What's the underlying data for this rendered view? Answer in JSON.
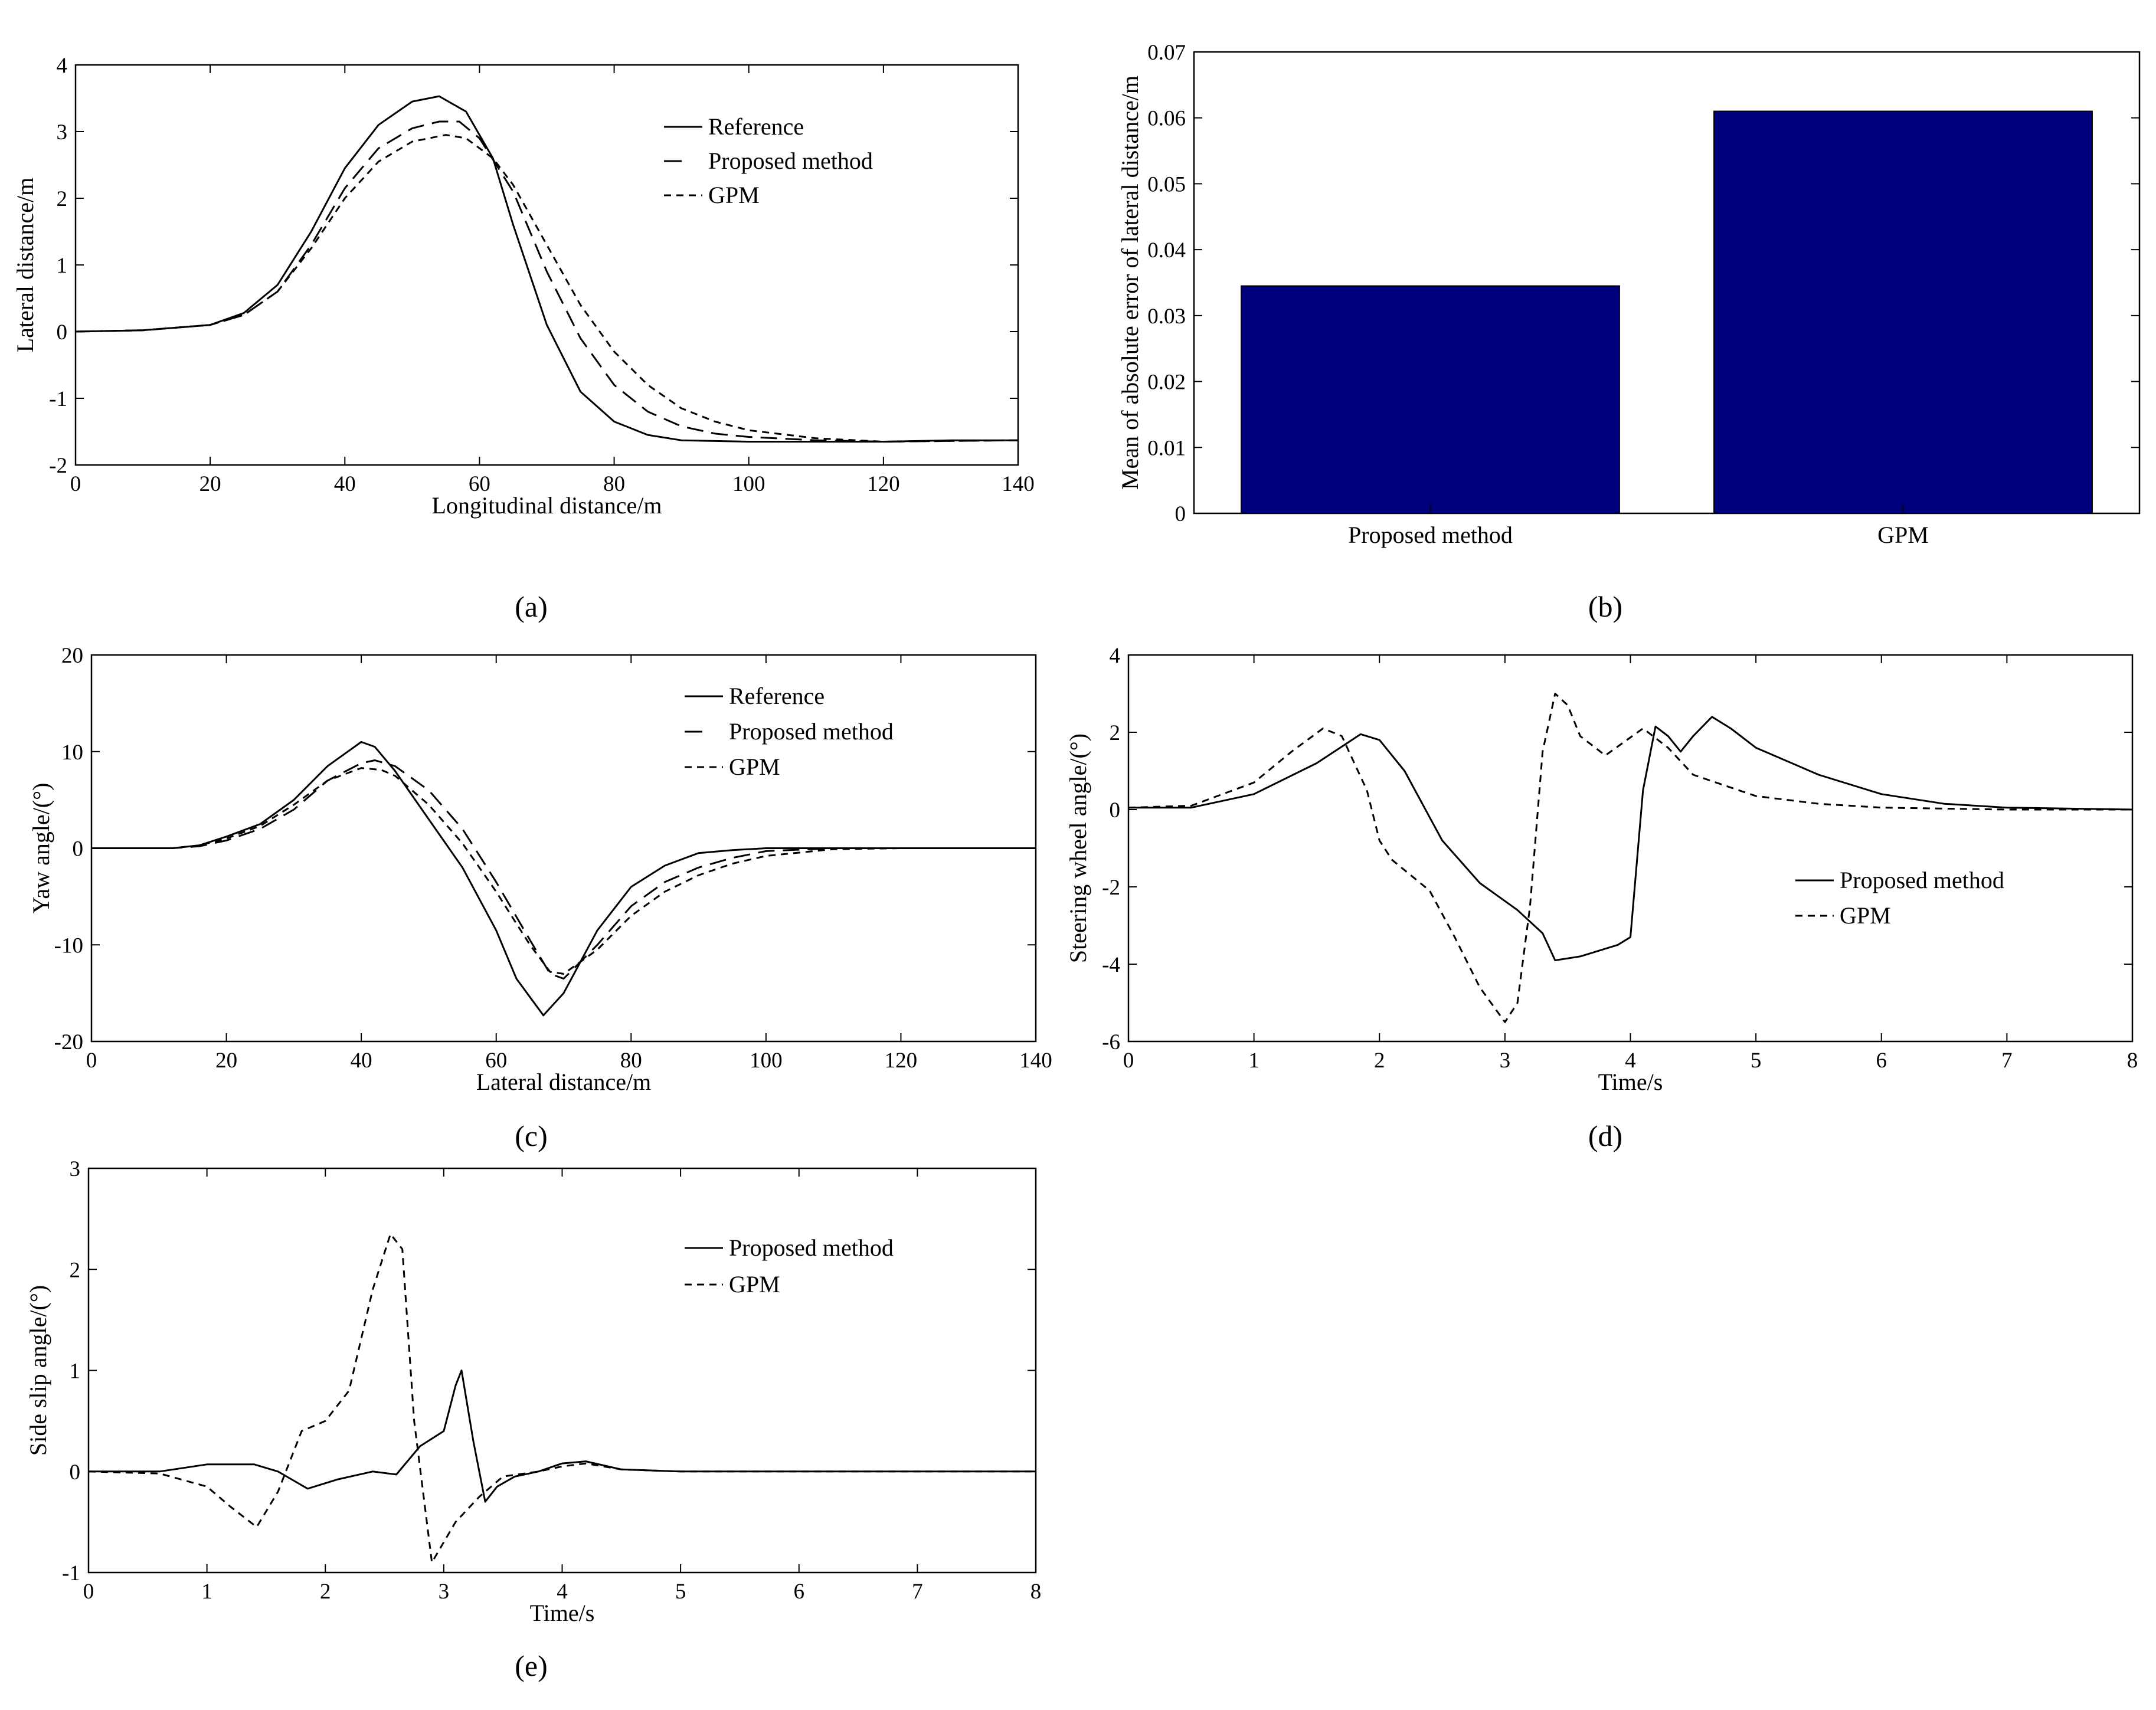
{
  "chart_data": [
    {
      "panel_label": "(a)",
      "type": "line",
      "xlabel": "Longitudinal distance/m",
      "ylabel": "Lateral distance/m",
      "xlim": [
        0,
        140
      ],
      "ylim": [
        -2,
        4
      ],
      "xticks": [
        0,
        20,
        40,
        60,
        80,
        100,
        120,
        140
      ],
      "yticks": [
        -2,
        -1,
        0,
        1,
        2,
        3,
        4
      ],
      "grid": false,
      "legend_position": "top-right",
      "series": [
        {
          "name": "Reference",
          "style": "solid",
          "x": [
            0,
            10,
            20,
            25,
            30,
            35,
            40,
            45,
            50,
            54,
            58,
            62,
            65,
            70,
            75,
            80,
            85,
            90,
            100,
            110,
            120,
            130,
            140
          ],
          "y": [
            0,
            0.02,
            0.1,
            0.28,
            0.7,
            1.5,
            2.45,
            3.1,
            3.45,
            3.53,
            3.3,
            2.6,
            1.6,
            0.1,
            -0.9,
            -1.35,
            -1.55,
            -1.63,
            -1.65,
            -1.65,
            -1.65,
            -1.63,
            -1.63
          ]
        },
        {
          "name": "Proposed method",
          "style": "longdash",
          "x": [
            0,
            10,
            20,
            25,
            30,
            35,
            40,
            45,
            50,
            54,
            57,
            60,
            65,
            70,
            75,
            80,
            85,
            90,
            95,
            100,
            110,
            120,
            130,
            140
          ],
          "y": [
            0,
            0.02,
            0.1,
            0.25,
            0.6,
            1.3,
            2.15,
            2.75,
            3.05,
            3.15,
            3.15,
            2.9,
            2.1,
            0.9,
            -0.1,
            -0.8,
            -1.2,
            -1.42,
            -1.53,
            -1.58,
            -1.63,
            -1.65,
            -1.64,
            -1.63
          ]
        },
        {
          "name": "GPM",
          "style": "shortdash",
          "x": [
            0,
            10,
            20,
            25,
            30,
            35,
            40,
            45,
            50,
            55,
            58,
            62,
            65,
            70,
            75,
            80,
            85,
            90,
            95,
            100,
            110,
            120,
            130,
            140
          ],
          "y": [
            0,
            0.02,
            0.1,
            0.25,
            0.6,
            1.25,
            2.0,
            2.55,
            2.85,
            2.95,
            2.9,
            2.6,
            2.2,
            1.3,
            0.4,
            -0.3,
            -0.8,
            -1.15,
            -1.35,
            -1.48,
            -1.6,
            -1.65,
            -1.64,
            -1.63
          ]
        }
      ]
    },
    {
      "panel_label": "(b)",
      "type": "bar",
      "categories": [
        "Proposed method",
        "GPM"
      ],
      "values": [
        0.0345,
        0.061
      ],
      "ylabel": "Mean of absolute error of lateral distance/m",
      "ylim": [
        0,
        0.07
      ],
      "yticks": [
        0,
        0.01,
        0.02,
        0.03,
        0.04,
        0.05,
        0.06,
        0.07
      ],
      "ytick_labels": [
        "0",
        "0.01",
        "0.02",
        "0.03",
        "0.04",
        "0.05",
        "0.06",
        "0.07"
      ],
      "bar_color": "#00007F",
      "grid": false
    },
    {
      "panel_label": "(c)",
      "type": "line",
      "xlabel": "Lateral distance/m",
      "ylabel": "Yaw angle/(°)",
      "xlim": [
        0,
        140
      ],
      "ylim": [
        -20,
        20
      ],
      "xticks": [
        0,
        20,
        40,
        60,
        80,
        100,
        120,
        140
      ],
      "yticks": [
        -20,
        -10,
        0,
        10,
        20
      ],
      "grid": false,
      "legend_position": "top-right",
      "series": [
        {
          "name": "Reference",
          "style": "solid",
          "x": [
            0,
            12,
            16,
            20,
            25,
            30,
            35,
            40,
            42,
            45,
            50,
            55,
            60,
            63,
            67,
            70,
            75,
            80,
            85,
            90,
            95,
            100,
            110,
            120,
            140
          ],
          "y": [
            0,
            0,
            0.3,
            1.2,
            2.5,
            5,
            8.5,
            11,
            10.5,
            8,
            3,
            -2,
            -8.5,
            -13.5,
            -17.3,
            -15,
            -8.5,
            -4,
            -1.8,
            -0.5,
            -0.2,
            0,
            0,
            0,
            0
          ]
        },
        {
          "name": "Proposed method",
          "style": "longdash",
          "x": [
            0,
            12,
            16,
            20,
            25,
            30,
            35,
            40,
            42,
            45,
            50,
            55,
            60,
            65,
            68,
            70,
            75,
            80,
            85,
            90,
            95,
            100,
            110,
            120
          ],
          "y": [
            0,
            0,
            0.2,
            0.8,
            2,
            4,
            7,
            8.8,
            9.1,
            8.5,
            6,
            2,
            -3.5,
            -9.5,
            -13,
            -13.5,
            -10,
            -6,
            -3.5,
            -2,
            -1,
            -0.3,
            0,
            0
          ]
        },
        {
          "name": "GPM",
          "style": "shortdash",
          "x": [
            0,
            12,
            16,
            20,
            25,
            30,
            35,
            40,
            43,
            45,
            50,
            55,
            60,
            65,
            68,
            70,
            75,
            80,
            85,
            90,
            95,
            100,
            110,
            120,
            125
          ],
          "y": [
            0,
            0,
            0.3,
            1,
            2.3,
            4.5,
            7,
            8.3,
            8.1,
            7.5,
            4.5,
            0.5,
            -4.5,
            -10,
            -12.8,
            -13,
            -10.5,
            -7,
            -4.5,
            -2.8,
            -1.6,
            -0.8,
            -0.1,
            0,
            0
          ]
        }
      ]
    },
    {
      "panel_label": "(d)",
      "type": "line",
      "xlabel": "Time/s",
      "ylabel": "Steering wheel angle/(°)",
      "xlim": [
        0,
        8
      ],
      "ylim": [
        -6,
        4
      ],
      "xticks": [
        0,
        1,
        2,
        3,
        4,
        5,
        6,
        7,
        8
      ],
      "yticks": [
        -6,
        -4,
        -2,
        0,
        2,
        4
      ],
      "grid": false,
      "legend_position": "center-right",
      "series": [
        {
          "name": "Proposed method",
          "style": "solid",
          "x": [
            0,
            0.5,
            1,
            1.5,
            1.85,
            2.0,
            2.2,
            2.5,
            2.8,
            3.1,
            3.3,
            3.4,
            3.6,
            3.9,
            4.0,
            4.1,
            4.2,
            4.3,
            4.4,
            4.5,
            4.65,
            4.8,
            5.0,
            5.5,
            6,
            6.5,
            7,
            8
          ],
          "y": [
            0.05,
            0.05,
            0.4,
            1.2,
            1.95,
            1.8,
            1.0,
            -0.8,
            -1.9,
            -2.6,
            -3.2,
            -3.9,
            -3.8,
            -3.5,
            -3.3,
            0.5,
            2.15,
            1.9,
            1.5,
            1.9,
            2.4,
            2.1,
            1.6,
            0.9,
            0.4,
            0.15,
            0.05,
            0
          ]
        },
        {
          "name": "GPM",
          "style": "shortdash",
          "x": [
            0,
            0.5,
            1,
            1.3,
            1.55,
            1.7,
            1.9,
            2.0,
            2.1,
            2.4,
            2.6,
            2.8,
            3.0,
            3.1,
            3.2,
            3.3,
            3.4,
            3.5,
            3.6,
            3.8,
            4.1,
            4.3,
            4.5,
            5.0,
            5.5,
            6,
            7,
            8
          ],
          "y": [
            0.05,
            0.1,
            0.7,
            1.5,
            2.1,
            1.9,
            0.5,
            -0.8,
            -1.3,
            -2.1,
            -3.3,
            -4.6,
            -5.5,
            -5.0,
            -2.5,
            1.5,
            3.0,
            2.7,
            1.9,
            1.4,
            2.1,
            1.6,
            0.9,
            0.35,
            0.15,
            0.05,
            0,
            0
          ]
        }
      ]
    },
    {
      "panel_label": "(e)",
      "type": "line",
      "xlabel": "Time/s",
      "ylabel": "Side slip angle/(°)",
      "xlim": [
        0,
        8
      ],
      "ylim": [
        -1,
        3
      ],
      "xticks": [
        0,
        1,
        2,
        3,
        4,
        5,
        6,
        7,
        8
      ],
      "yticks": [
        -1,
        0,
        1,
        2,
        3
      ],
      "grid": false,
      "legend_position": "top-right",
      "series": [
        {
          "name": "Proposed method",
          "style": "solid",
          "x": [
            0,
            0.6,
            1.0,
            1.4,
            1.6,
            1.85,
            2.1,
            2.4,
            2.6,
            2.8,
            3.0,
            3.1,
            3.15,
            3.25,
            3.35,
            3.45,
            3.6,
            3.8,
            4.0,
            4.2,
            4.5,
            5,
            8
          ],
          "y": [
            0,
            0,
            0.07,
            0.07,
            0,
            -0.17,
            -0.08,
            0,
            -0.03,
            0.25,
            0.4,
            0.85,
            1.0,
            0.3,
            -0.3,
            -0.15,
            -0.05,
            0,
            0.08,
            0.1,
            0.02,
            0,
            0
          ]
        },
        {
          "name": "GPM",
          "style": "shortdash",
          "x": [
            0,
            0.6,
            1.0,
            1.2,
            1.42,
            1.6,
            1.8,
            2.0,
            2.2,
            2.4,
            2.55,
            2.65,
            2.75,
            2.9,
            3.1,
            3.3,
            3.5,
            3.8,
            4.0,
            4.2,
            4.5,
            5,
            8
          ],
          "y": [
            0,
            -0.02,
            -0.15,
            -0.35,
            -0.55,
            -0.2,
            0.4,
            0.5,
            0.8,
            1.8,
            2.35,
            2.2,
            0.5,
            -0.9,
            -0.5,
            -0.25,
            -0.05,
            0,
            0.05,
            0.08,
            0.02,
            0,
            0
          ]
        }
      ]
    }
  ]
}
